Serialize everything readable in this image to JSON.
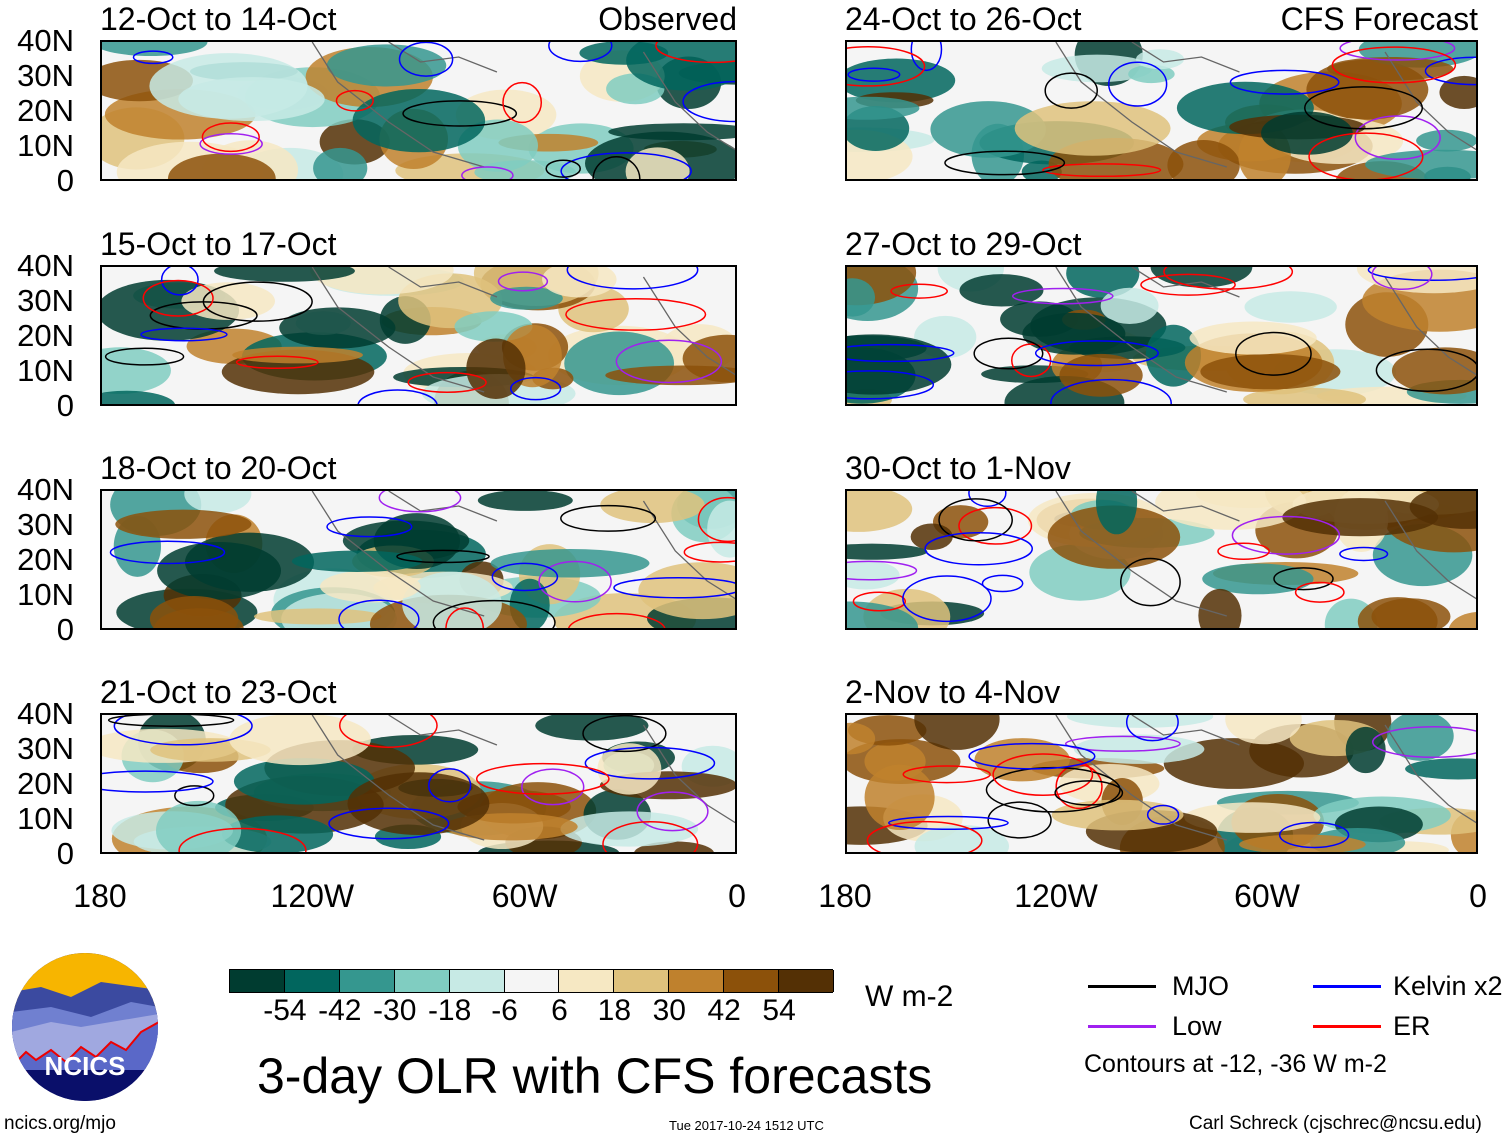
{
  "panels": [
    {
      "title": "12-Oct to 14-Oct",
      "label": "Observed"
    },
    {
      "title": "24-Oct to 26-Oct",
      "label": "CFS Forecast"
    },
    {
      "title": "15-Oct to 17-Oct",
      "label": ""
    },
    {
      "title": "27-Oct to 29-Oct",
      "label": ""
    },
    {
      "title": "18-Oct to 20-Oct",
      "label": ""
    },
    {
      "title": "30-Oct to 1-Nov",
      "label": ""
    },
    {
      "title": "21-Oct to 23-Oct",
      "label": ""
    },
    {
      "title": "2-Nov to 4-Nov",
      "label": ""
    }
  ],
  "y_ticks": [
    "40N",
    "30N",
    "20N",
    "10N",
    "0"
  ],
  "x_ticks": [
    "180",
    "120W",
    "60W",
    "0"
  ],
  "colorbar": {
    "colors": [
      "#003c30",
      "#01665e",
      "#35978f",
      "#80cdc1",
      "#c7eae5",
      "#f5f5f5",
      "#f6e8c3",
      "#dfc27d",
      "#bf812d",
      "#8c510a",
      "#543005"
    ],
    "labels": [
      "-54",
      "-42",
      "-30",
      "-18",
      "-6",
      "6",
      "18",
      "30",
      "42",
      "54"
    ],
    "units": "W m-2"
  },
  "logo": {
    "text": "NCICS"
  },
  "title": "3-day OLR with CFS forecasts",
  "legend": {
    "items": [
      {
        "label": "MJO",
        "color": "#000000"
      },
      {
        "label": "Kelvin x2",
        "color": "#0000ff"
      },
      {
        "label": "Low",
        "color": "#a020f0"
      },
      {
        "label": "ER",
        "color": "#ff0000"
      }
    ],
    "note": "Contours at -12, -36 W m-2"
  },
  "footer": {
    "url": "ncics.org/mjo",
    "timestamp": "Tue 2017-10-24 1512 UTC",
    "credit": "Carl Schreck (cjschrec@ncsu.edu)"
  }
}
